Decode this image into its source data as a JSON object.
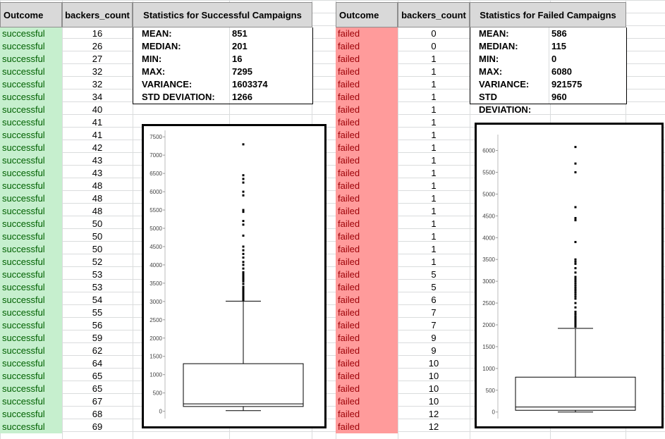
{
  "headers": {
    "left_outcome": "Outcome",
    "left_backers": "backers_count",
    "left_stats_title": "Statistics for Successful Campaigns",
    "right_outcome": "Outcome",
    "right_backers": "backers_count",
    "right_stats_title": "Statistics for Failed Campaigns"
  },
  "successful": {
    "outcomes": [
      "successful",
      "successful",
      "successful",
      "successful",
      "successful",
      "successful",
      "successful",
      "successful",
      "successful",
      "successful",
      "successful",
      "successful",
      "successful",
      "successful",
      "successful",
      "successful",
      "successful",
      "successful",
      "successful",
      "successful",
      "successful",
      "successful",
      "successful",
      "successful",
      "successful",
      "successful",
      "successful",
      "successful",
      "successful",
      "successful",
      "successful",
      "successful"
    ],
    "backers": [
      "16",
      "26",
      "27",
      "32",
      "32",
      "34",
      "40",
      "41",
      "41",
      "42",
      "43",
      "43",
      "48",
      "48",
      "48",
      "50",
      "50",
      "50",
      "52",
      "53",
      "53",
      "54",
      "55",
      "56",
      "59",
      "62",
      "64",
      "65",
      "65",
      "67",
      "68",
      "69"
    ],
    "stats": [
      {
        "label": "MEAN:",
        "value": "851"
      },
      {
        "label": "MEDIAN:",
        "value": "201"
      },
      {
        "label": "MIN:",
        "value": "16"
      },
      {
        "label": "MAX:",
        "value": "7295"
      },
      {
        "label": "VARIANCE:",
        "value": "1603374"
      },
      {
        "label": "STD DEVIATION:",
        "value": "1266"
      }
    ]
  },
  "failed": {
    "outcomes": [
      "failed",
      "failed",
      "failed",
      "failed",
      "failed",
      "failed",
      "failed",
      "failed",
      "failed",
      "failed",
      "failed",
      "failed",
      "failed",
      "failed",
      "failed",
      "failed",
      "failed",
      "failed",
      "failed",
      "failed",
      "failed",
      "failed",
      "failed",
      "failed",
      "failed",
      "failed",
      "failed",
      "failed",
      "failed",
      "failed",
      "failed",
      "failed"
    ],
    "backers": [
      "0",
      "0",
      "1",
      "1",
      "1",
      "1",
      "1",
      "1",
      "1",
      "1",
      "1",
      "1",
      "1",
      "1",
      "1",
      "1",
      "1",
      "1",
      "1",
      "5",
      "5",
      "6",
      "7",
      "7",
      "9",
      "9",
      "10",
      "10",
      "10",
      "10",
      "12",
      "12"
    ],
    "stats": [
      {
        "label": "MEAN:",
        "value": "586"
      },
      {
        "label": "MEDIAN:",
        "value": "115"
      },
      {
        "label": "MIN:",
        "value": "0"
      },
      {
        "label": "MAX:",
        "value": "6080"
      },
      {
        "label": "VARIANCE:",
        "value": "921575"
      },
      {
        "label": "STD DEVIATION:",
        "value": "960"
      }
    ]
  },
  "chart_data": [
    {
      "type": "box",
      "yticks": [
        0,
        500,
        1000,
        1500,
        2000,
        2500,
        3000,
        3500,
        4000,
        4500,
        5000,
        5500,
        6000,
        6500,
        7000,
        7500
      ],
      "ylim": [
        -200,
        7600
      ],
      "box": {
        "min": 16,
        "q1": 130,
        "median": 201,
        "q3": 1300,
        "whisker_high": 3010
      },
      "outliers": [
        3040,
        3080,
        3120,
        3160,
        3200,
        3250,
        3300,
        3350,
        3400,
        3480,
        3550,
        3600,
        3650,
        3700,
        3750,
        3800,
        3900,
        4000,
        4080,
        4200,
        4300,
        4400,
        4500,
        4800,
        5100,
        5200,
        5450,
        5500,
        5900,
        6000,
        6250,
        6350,
        6450,
        7295
      ]
    },
    {
      "type": "box",
      "yticks": [
        0,
        500,
        1000,
        1500,
        2000,
        2500,
        3000,
        3500,
        4000,
        4500,
        5000,
        5500,
        6000
      ],
      "ylim": [
        -150,
        6300
      ],
      "box": {
        "min": 0,
        "q1": 40,
        "median": 115,
        "q3": 800,
        "whisker_high": 1920
      },
      "outliers": [
        1960,
        2000,
        2040,
        2080,
        2120,
        2160,
        2200,
        2250,
        2300,
        2400,
        2500,
        2600,
        2650,
        2700,
        2750,
        2800,
        2850,
        2900,
        2950,
        3000,
        3050,
        3100,
        3200,
        3300,
        3400,
        3450,
        3500,
        3900,
        4400,
        4450,
        4700,
        5500,
        5700,
        6080
      ]
    }
  ]
}
